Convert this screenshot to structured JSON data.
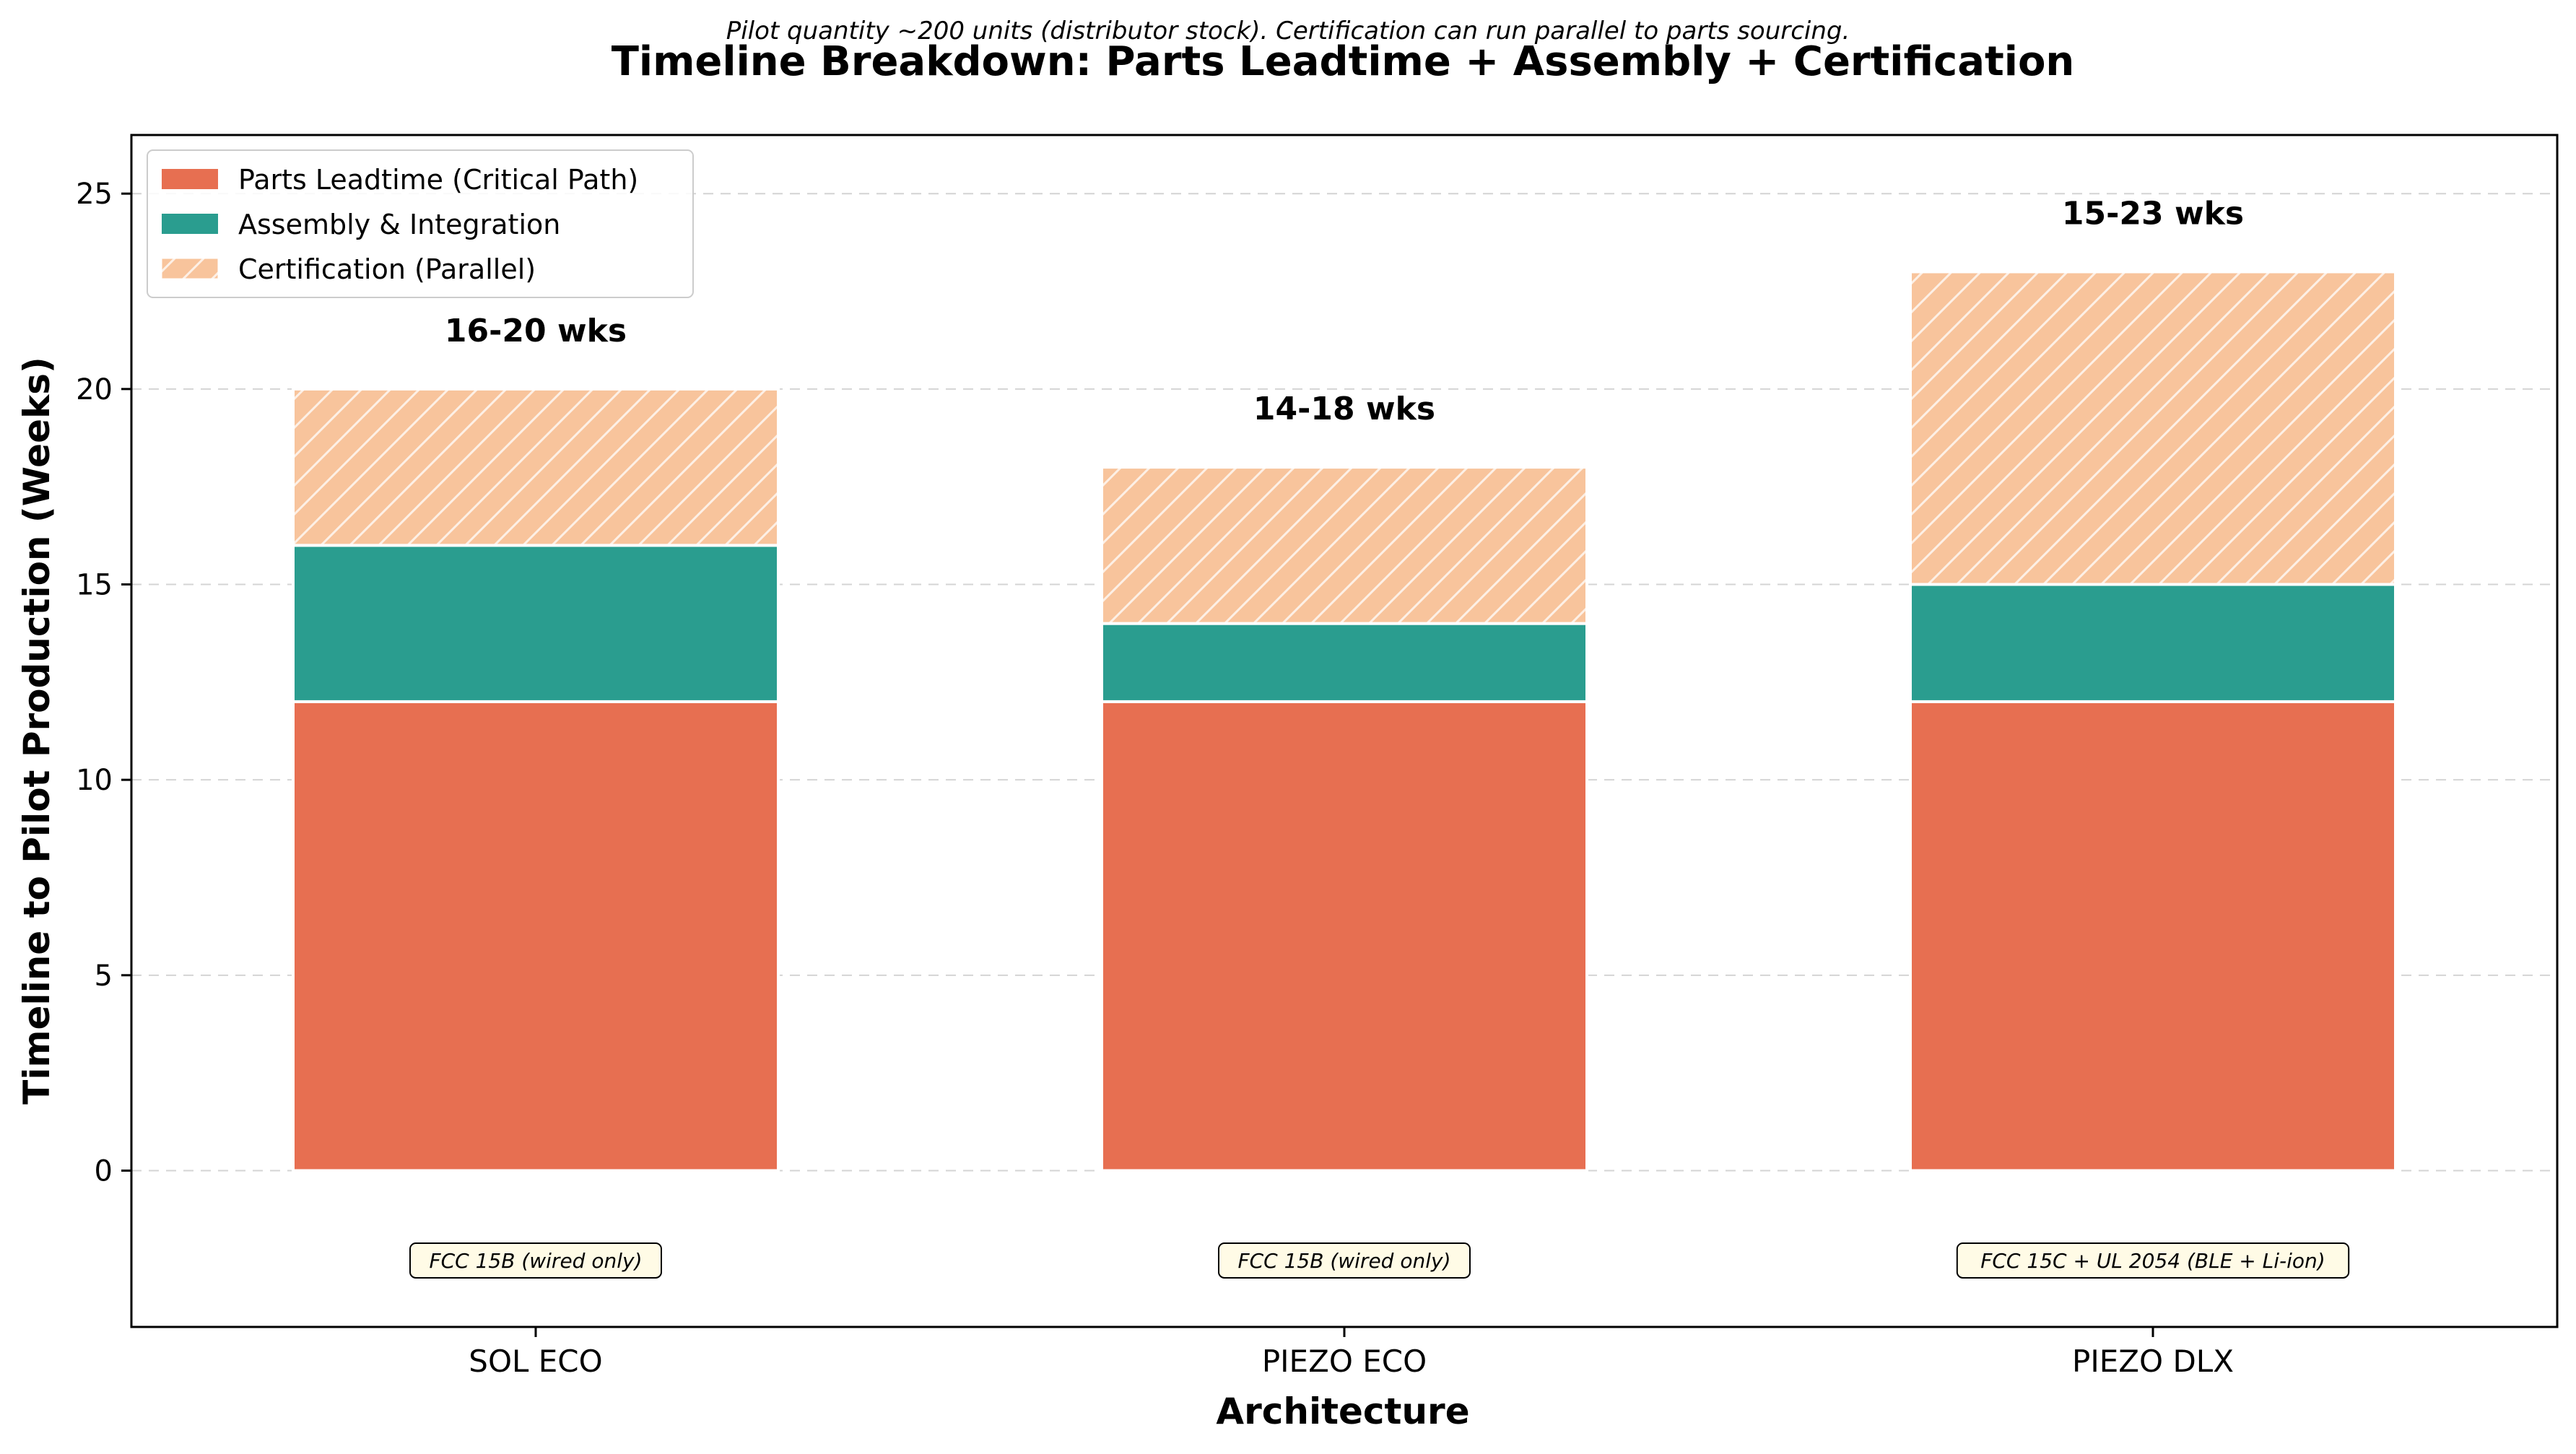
{
  "subtitle": "Pilot quantity ~200 units (distributor stock). Certification can run parallel to parts sourcing.",
  "chart_data": {
    "type": "bar",
    "stacked": true,
    "title": "Timeline Breakdown: Parts Leadtime + Assembly + Certification",
    "xlabel": "Architecture",
    "ylabel": "Timeline to Pilot Production (Weeks)",
    "ylim": [
      -4,
      26.5
    ],
    "yticks": [
      0,
      5,
      10,
      15,
      20,
      25
    ],
    "grid": "y-dashed",
    "legend_position": "top-left",
    "categories": [
      "SOL ECO",
      "PIEZO ECO",
      "PIEZO DLX"
    ],
    "series": [
      {
        "name": "Parts Leadtime (Critical Path)",
        "values": [
          12,
          12,
          12
        ],
        "color": "#e76f51",
        "hatch": false
      },
      {
        "name": "Assembly & Integration",
        "values": [
          4,
          2,
          3
        ],
        "color": "#2a9d8f",
        "hatch": false
      },
      {
        "name": "Certification (Parallel)",
        "values": [
          4,
          4,
          8
        ],
        "color": "#f8c49c",
        "hatch": true
      }
    ],
    "total_labels": [
      "16-20 wks",
      "14-18 wks",
      "15-23 wks"
    ],
    "cert_notes": [
      "FCC 15B (wired only)",
      "FCC 15B (wired only)",
      "FCC 15C + UL 2054 (BLE + Li-ion)"
    ]
  }
}
